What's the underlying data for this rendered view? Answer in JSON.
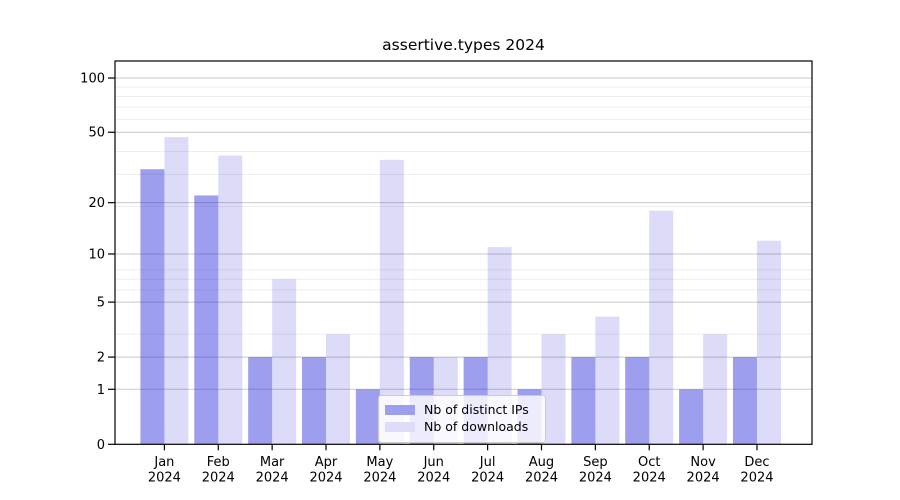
{
  "chart_data": {
    "type": "bar",
    "title": "assertive.types 2024",
    "categories": [
      "Jan",
      "Feb",
      "Mar",
      "Apr",
      "May",
      "Jun",
      "Jul",
      "Aug",
      "Sep",
      "Oct",
      "Nov",
      "Dec"
    ],
    "year_label": "2024",
    "series": [
      {
        "name": "Nb of distinct IPs",
        "values": [
          31,
          22,
          2,
          2,
          1,
          2,
          2,
          1,
          2,
          2,
          1,
          2
        ],
        "color": "rgba(40,40,220,0.45)",
        "swatch_color": "#9e9eef"
      },
      {
        "name": "Nb of downloads",
        "values": [
          47,
          37,
          7,
          3,
          35,
          2,
          11,
          3,
          4,
          18,
          3,
          12
        ],
        "color": "rgba(40,40,220,0.16)",
        "swatch_color": "#ddddf9"
      }
    ],
    "yticks": [
      0,
      1,
      2,
      5,
      10,
      20,
      50,
      100
    ],
    "y_scale": "log10(value+1)",
    "ylim": [
      0,
      124
    ],
    "xlabel": "",
    "ylabel": "",
    "grid": true,
    "legend_position": "lower center-left",
    "colors": {
      "background": "#ffffff",
      "axis": "#000000",
      "major_grid": "#c9c9c9",
      "minor_grid": "#ededed",
      "tick_label": "#000000"
    }
  }
}
